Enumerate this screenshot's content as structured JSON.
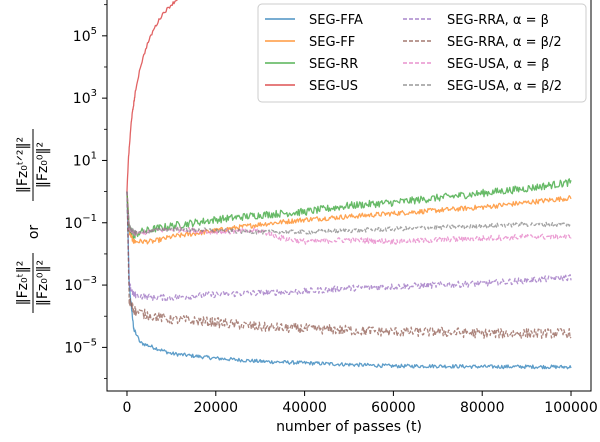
{
  "chart_data": {
    "type": "line",
    "title": "",
    "xlabel": "number of passes (t)",
    "ylabel_parts": [
      "‖Fz₀ᵗ‖²",
      "‖Fz₀⁰‖²",
      "or",
      "‖Fz₀ᵗᐟ²‖²",
      "‖Fz₀⁰‖²"
    ],
    "x_ticks": [
      0,
      20000,
      40000,
      60000,
      80000,
      100000
    ],
    "x_tick_labels": [
      "0",
      "20000",
      "40000",
      "60000",
      "80000",
      "100000"
    ],
    "xlim": [
      -4500,
      104500
    ],
    "y_scale": "log",
    "y_ticks_exp": [
      -5,
      -3,
      -1,
      1,
      3,
      5
    ],
    "y_tick_labels": [
      {
        "base": "10",
        "exp": "−5"
      },
      {
        "base": "10",
        "exp": "−3"
      },
      {
        "base": "10",
        "exp": "−1"
      },
      {
        "base": "10",
        "exp": "1"
      },
      {
        "base": "10",
        "exp": "3"
      },
      {
        "base": "10",
        "exp": "5"
      }
    ],
    "ylim_exp": [
      -6.4,
      6.15
    ],
    "grid": false,
    "legend_position": "top-right",
    "series": [
      {
        "name": "SEG-FFA",
        "color": "#1f77b4",
        "dashed": false,
        "x": [
          0,
          500,
          1500,
          3000,
          6000,
          10000,
          20000,
          30000,
          40000,
          50000,
          60000,
          70000,
          80000,
          90000,
          100000
        ],
        "log10_y": [
          0,
          -3.0,
          -4.4,
          -4.85,
          -5.0,
          -5.2,
          -5.35,
          -5.45,
          -5.5,
          -5.55,
          -5.6,
          -5.6,
          -5.62,
          -5.62,
          -5.63
        ],
        "noise": 0.06
      },
      {
        "name": "SEG-FF",
        "color": "#ff7f0e",
        "dashed": false,
        "x": [
          0,
          500,
          1500,
          3000,
          6000,
          10000,
          20000,
          30000,
          40000,
          50000,
          60000,
          70000,
          80000,
          90000,
          100000
        ],
        "log10_y": [
          0,
          -1.3,
          -1.6,
          -1.6,
          -1.6,
          -1.45,
          -1.25,
          -1.05,
          -0.9,
          -0.8,
          -0.7,
          -0.6,
          -0.5,
          -0.35,
          -0.2
        ],
        "noise": 0.08
      },
      {
        "name": "SEG-RR",
        "color": "#2ca02c",
        "dashed": false,
        "x": [
          0,
          500,
          1500,
          3000,
          6000,
          10000,
          20000,
          30000,
          40000,
          50000,
          60000,
          70000,
          80000,
          90000,
          100000
        ],
        "log10_y": [
          0,
          -1.2,
          -1.4,
          -1.3,
          -1.2,
          -1.1,
          -0.9,
          -0.75,
          -0.65,
          -0.45,
          -0.35,
          -0.2,
          -0.05,
          0.1,
          0.3
        ],
        "noise": 0.12
      },
      {
        "name": "SEG-US",
        "color": "#d62728",
        "dashed": false,
        "x": [
          0,
          300,
          1000,
          2000,
          3000,
          4500,
          6000,
          8000,
          10000,
          11500
        ],
        "log10_y": [
          0,
          1.0,
          2.3,
          3.3,
          4.0,
          4.7,
          5.2,
          5.7,
          6.0,
          6.2
        ],
        "noise": 0.05
      },
      {
        "name": "SEG-RRA, α = β",
        "color": "#9467bd",
        "dashed": true,
        "x": [
          0,
          500,
          1500,
          3000,
          6000,
          10000,
          20000,
          30000,
          40000,
          50000,
          60000,
          70000,
          80000,
          90000,
          100000
        ],
        "log10_y": [
          0,
          -3.0,
          -3.3,
          -3.35,
          -3.4,
          -3.4,
          -3.3,
          -3.25,
          -3.2,
          -3.1,
          -3.05,
          -3.0,
          -2.95,
          -2.85,
          -2.75
        ],
        "noise": 0.1
      },
      {
        "name": "SEG-RRA, α = β/2",
        "color": "#8c564b",
        "dashed": true,
        "x": [
          0,
          500,
          1500,
          3000,
          6000,
          10000,
          20000,
          30000,
          40000,
          50000,
          60000,
          70000,
          80000,
          90000,
          100000
        ],
        "log10_y": [
          0,
          -3.5,
          -3.8,
          -3.9,
          -4.0,
          -4.1,
          -4.2,
          -4.35,
          -4.4,
          -4.45,
          -4.5,
          -4.5,
          -4.55,
          -4.55,
          -4.55
        ],
        "noise": 0.16
      },
      {
        "name": "SEG-USA, α = β",
        "color": "#e377c2",
        "dashed": true,
        "x": [
          0,
          500,
          1500,
          3000,
          6000,
          10000,
          20000,
          30000,
          35000,
          40000,
          50000,
          60000,
          70000,
          80000,
          90000,
          100000
        ],
        "log10_y": [
          0,
          -1.2,
          -1.35,
          -1.35,
          -1.25,
          -1.2,
          -1.3,
          -1.25,
          -1.5,
          -1.6,
          -1.55,
          -1.6,
          -1.55,
          -1.5,
          -1.45,
          -1.45
        ],
        "noise": 0.09
      },
      {
        "name": "SEG-USA, α = β/2",
        "color": "#7f7f7f",
        "dashed": true,
        "x": [
          0,
          500,
          1500,
          3000,
          6000,
          10000,
          20000,
          30000,
          40000,
          50000,
          60000,
          70000,
          80000,
          90000,
          100000
        ],
        "log10_y": [
          0,
          -1.1,
          -1.3,
          -1.3,
          -1.25,
          -1.2,
          -1.25,
          -1.3,
          -1.3,
          -1.25,
          -1.2,
          -1.15,
          -1.1,
          -1.05,
          -1.05
        ],
        "noise": 0.07
      }
    ]
  }
}
